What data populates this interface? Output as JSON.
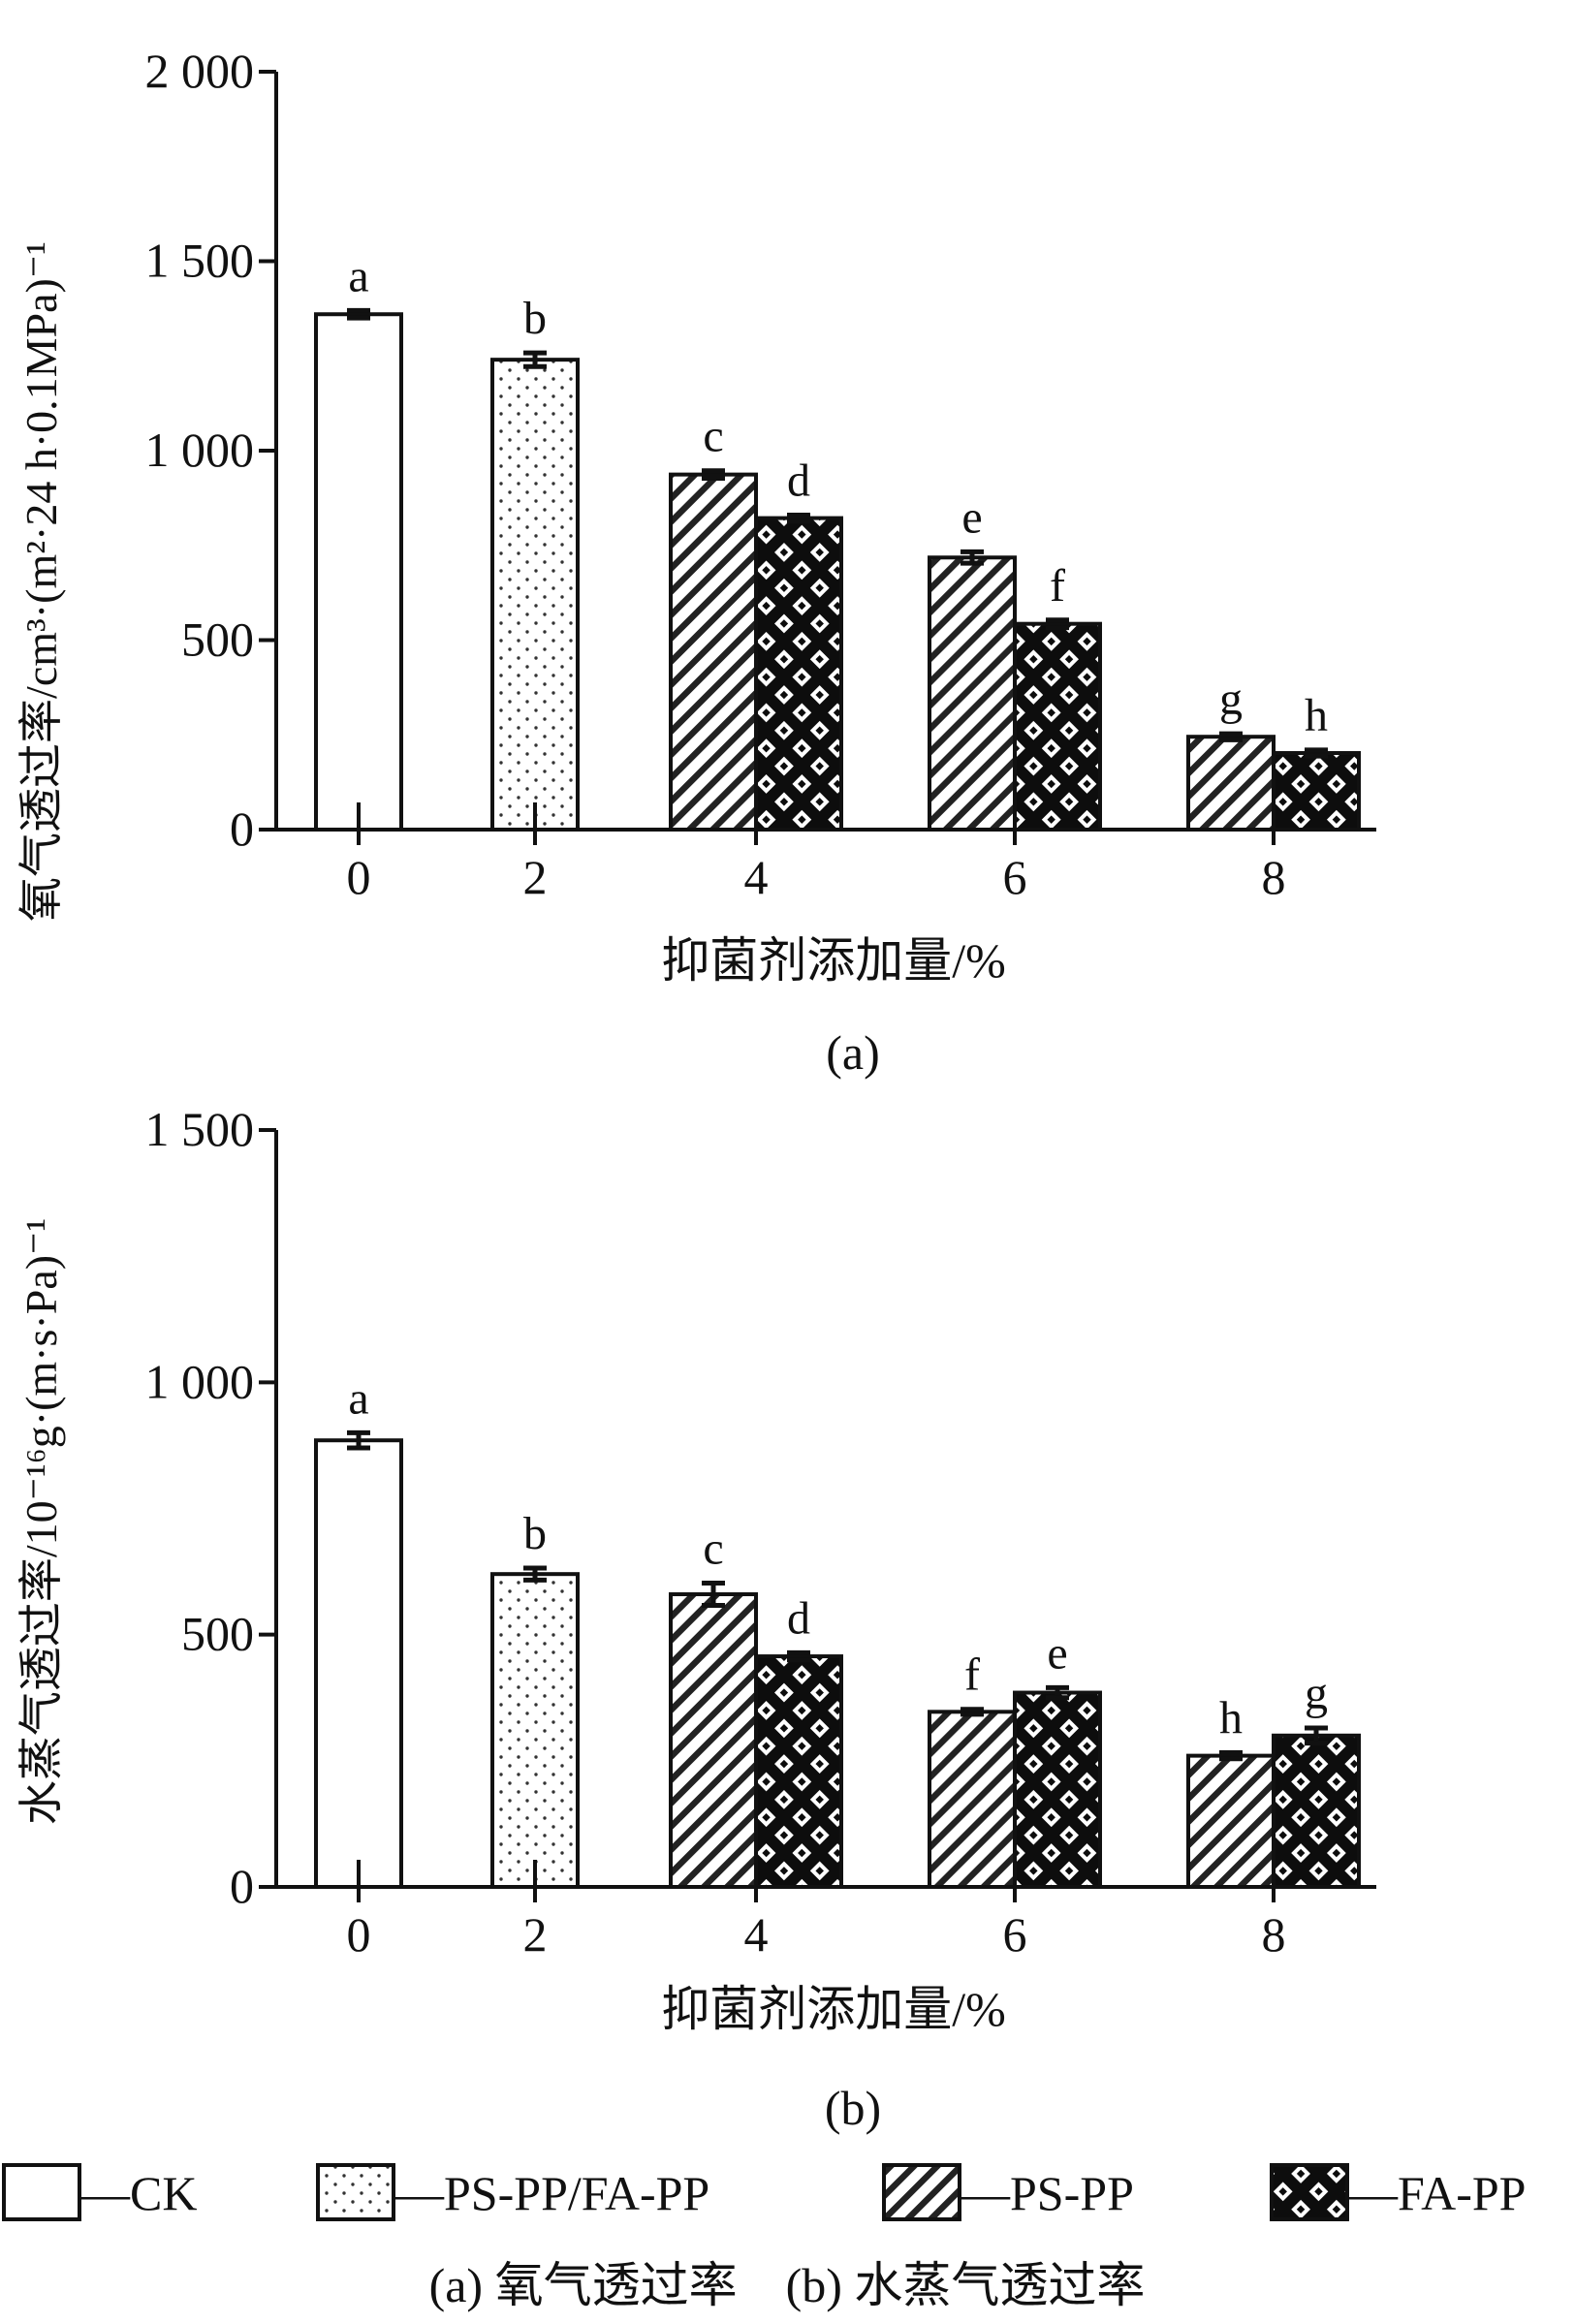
{
  "chart_data": [
    {
      "type": "bar",
      "panel_label": "(a)",
      "categories": [
        "0",
        "2",
        "4",
        "6",
        "8"
      ],
      "xlabel": "抑菌剂添加量/%",
      "ylabel": "氧气透过率/cm³·(m²·24 h·0.1MPa)⁻¹",
      "ylim": [
        0,
        2000
      ],
      "yticks": [
        0,
        500,
        1000,
        1500,
        2000
      ],
      "ytick_labels": [
        "0",
        "500",
        "1 000",
        "1 500",
        "2 000"
      ],
      "bars": [
        {
          "category": "0",
          "series": "CK",
          "value": 1360,
          "error": 10,
          "letter": "a"
        },
        {
          "category": "2",
          "series": "PS-PP/FA-PP",
          "value": 1240,
          "error": 18,
          "letter": "b"
        },
        {
          "category": "4",
          "series": "PS-PP",
          "value": 937,
          "error": 10,
          "letter": "c"
        },
        {
          "category": "4",
          "series": "FA-PP",
          "value": 822,
          "error": 8,
          "letter": "d"
        },
        {
          "category": "6",
          "series": "PS-PP",
          "value": 718,
          "error": 15,
          "letter": "e"
        },
        {
          "category": "6",
          "series": "FA-PP",
          "value": 543,
          "error": 10,
          "letter": "f"
        },
        {
          "category": "8",
          "series": "PS-PP",
          "value": 245,
          "error": 8,
          "letter": "g"
        },
        {
          "category": "8",
          "series": "FA-PP",
          "value": 202,
          "error": 8,
          "letter": "h"
        }
      ]
    },
    {
      "type": "bar",
      "panel_label": "(b)",
      "categories": [
        "0",
        "2",
        "4",
        "6",
        "8"
      ],
      "xlabel": "抑菌剂添加量/%",
      "ylabel": "水蒸气透过率/10⁻¹⁶g·(m·s·Pa)⁻¹",
      "ylim": [
        0,
        1500
      ],
      "yticks": [
        0,
        500,
        1000,
        1500
      ],
      "ytick_labels": [
        "0",
        "500",
        "1 000",
        "1 500"
      ],
      "bars": [
        {
          "category": "0",
          "series": "CK",
          "value": 885,
          "error": 15,
          "letter": "a"
        },
        {
          "category": "2",
          "series": "PS-PP/FA-PP",
          "value": 620,
          "error": 12,
          "letter": "b"
        },
        {
          "category": "4",
          "series": "PS-PP",
          "value": 580,
          "error": 22,
          "letter": "c"
        },
        {
          "category": "4",
          "series": "FA-PP",
          "value": 457,
          "error": 7,
          "letter": "d"
        },
        {
          "category": "6",
          "series": "PS-PP",
          "value": 347,
          "error": 5,
          "letter": "f"
        },
        {
          "category": "6",
          "series": "FA-PP",
          "value": 385,
          "error": 10,
          "letter": "e"
        },
        {
          "category": "8",
          "series": "PS-PP",
          "value": 260,
          "error": 6,
          "letter": "h"
        },
        {
          "category": "8",
          "series": "FA-PP",
          "value": 300,
          "error": 15,
          "letter": "g"
        }
      ]
    }
  ],
  "legend": [
    {
      "series": "CK",
      "label": "—CK",
      "pattern": "blank"
    },
    {
      "series": "PS-PP/FA-PP",
      "label": "—PS-PP/FA-PP",
      "pattern": "dots"
    },
    {
      "series": "PS-PP",
      "label": "—PS-PP",
      "pattern": "hatch"
    },
    {
      "series": "FA-PP",
      "label": "—FA-PP",
      "pattern": "crosshatch"
    }
  ],
  "caption": "(a) 氧气透过率　(b) 水蒸气透过率",
  "colors": {
    "ink": "#111111",
    "background": "#ffffff"
  }
}
